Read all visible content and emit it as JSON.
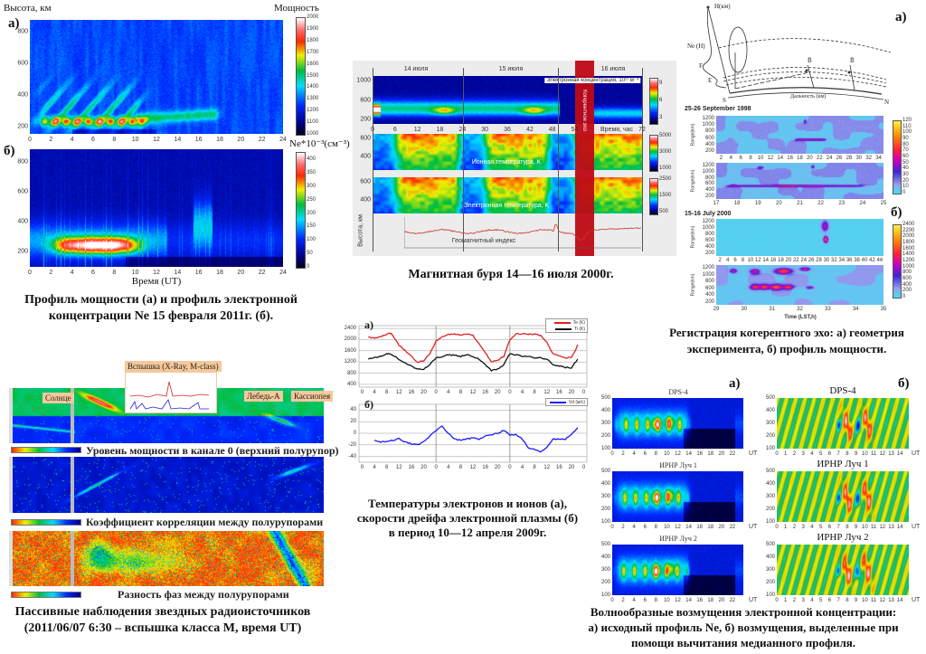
{
  "colors": {
    "jet_low": "#00008b",
    "jet_high": "#ff0000",
    "storm_band": "#b01010",
    "te_line": "#e02020",
    "ti_line": "#111111",
    "vd_line": "#1a1aff"
  },
  "fig1": {
    "ylabel": "Высота, км",
    "label_a": "а)",
    "label_b": "б)",
    "cbar_a_title": "Мощность",
    "cbar_b_title": "Ne*10⁻³(см⁻³)",
    "xlabel": "Время (UT)",
    "caption": [
      "Профиль мощности (а) и профиль электронной",
      "концентрации Ne 15 февраля 2011г. (б)."
    ]
  },
  "fig2": {
    "days": [
      "14 июля",
      "15 июля",
      "16 июля"
    ],
    "ne_label": "Электронная концентрация, 10¹¹ м⁻³",
    "coherent_label": "Когерентное эхо",
    "ti_label": "Ионная температура, K",
    "te_label": "Электронная температура, K",
    "ylabel": "Высота, км",
    "geomag_label": "Геомагнитный индекс",
    "time_label": "Время, час",
    "caption": "Магнитная буря 14—16 июля 2000г."
  },
  "fig3": {
    "label_a": "а)",
    "label_b": "б)",
    "diagram": {
      "h_axis": "H(км)",
      "ne_h": "Ne (H)",
      "f_layer": "F",
      "e_layer": "E",
      "south": "S",
      "north": "N",
      "b_field": "B̄",
      "range": "Дальность (км)"
    },
    "title_1998": "25-26 September 1998",
    "title_2000": "15-16 July 2000",
    "ylabel": "Range(km)",
    "xlabel": "Time (LST,h)",
    "caption": [
      "Регистрация когерентного эхо: а) геометрия",
      "эксперимента, б) профиль мощности."
    ]
  },
  "fig4": {
    "label_a": "а)",
    "label_b": "б)",
    "legend_te": "Te (K)",
    "legend_ti": "Ti (K)",
    "legend_vd": "Vd (м/с)",
    "caption": [
      "Температуры электронов и ионов (а),",
      "скорости дрейфа электронной плазмы (б)",
      "в период 10—12 апреля 2009г."
    ]
  },
  "fig5": {
    "flare_label": "Вспышка (X-Ray, M-class)",
    "sun_label": "Солнце",
    "cygnus_label": "Лебедь-А",
    "cassiopeia_label": "Кассиопея",
    "strip1_caption": "Уровень мощности в канале 0 (верхний полурупор)",
    "strip2_caption": "Коэффициент корреляции между полурупорами",
    "strip3_caption": "Разность фаз между полурупорами",
    "caption": [
      "Пассивные наблюдения звездных радиоисточников",
      "(2011/06/07 6:30 – вспышка класса M, время UT)"
    ]
  },
  "fig6": {
    "label_a": "а)",
    "label_b": "б)",
    "titles": [
      "DPS-4",
      "ИРНР Луч 1",
      "ИРНР Луч 2"
    ],
    "x_unit": "UT",
    "caption": [
      "Волнообразные возмущения электронной концентрации:",
      "а) исходный профиль Ne, б) возмущения, выделенные при",
      "помощи вычитания медианного профиля."
    ]
  },
  "chart_data": [
    {
      "type": "heatmap",
      "panel": "fig1-a",
      "title": "Мощность",
      "ylabel": "Высота, км",
      "xlim": [
        0,
        24
      ],
      "xticks": [
        0,
        2,
        4,
        6,
        8,
        10,
        12,
        14,
        16,
        18,
        20,
        22,
        24
      ],
      "ylim": [
        154,
        874
      ],
      "yticks": [
        200,
        400,
        600,
        800
      ],
      "colorbar_ticks": [
        2000,
        1900,
        1800,
        1700,
        1600,
        1500,
        1400,
        1300,
        1200,
        1100,
        1000
      ],
      "clim": [
        1000,
        2000
      ]
    },
    {
      "type": "heatmap",
      "panel": "fig1-b",
      "title": "Ne*10⁻³(см⁻³)",
      "xlabel": "Время (UT)",
      "xlim": [
        0,
        24
      ],
      "xticks": [
        0,
        2,
        4,
        6,
        8,
        10,
        12,
        14,
        16,
        18,
        20,
        22,
        24
      ],
      "ylim": [
        100,
        885
      ],
      "yticks": [
        200,
        400,
        600,
        800
      ],
      "colorbar_ticks": [
        400,
        350,
        300,
        250,
        200,
        150,
        100,
        50,
        0
      ],
      "clim": [
        0,
        440
      ]
    },
    {
      "type": "heatmap",
      "panel": "fig2-ne",
      "xlim": [
        0,
        72
      ],
      "xticks": [
        0,
        6,
        12,
        18,
        24,
        30,
        36,
        42,
        48,
        54,
        72
      ],
      "ylim": [
        100,
        1100
      ],
      "yticks": [
        1000,
        600,
        200
      ],
      "colorbar_ticks": [
        9,
        6,
        3
      ]
    },
    {
      "type": "heatmap",
      "panel": "fig2-ti",
      "ylim": [
        250,
        650
      ],
      "yticks": [
        600,
        400
      ],
      "colorbar_ticks": [
        5000,
        3000,
        1000
      ]
    },
    {
      "type": "heatmap",
      "panel": "fig2-te",
      "ylim": [
        250,
        650
      ],
      "yticks": [
        600,
        400
      ],
      "colorbar_ticks": [
        2500,
        1500,
        500
      ]
    },
    {
      "type": "line",
      "panel": "fig4-a",
      "xlim": [
        -1,
        73
      ],
      "ylim": [
        300,
        2500
      ],
      "xticks": [
        0,
        4,
        8,
        12,
        16,
        20,
        24,
        28,
        32,
        36,
        40,
        44,
        48,
        52,
        56,
        60,
        64,
        68,
        72
      ],
      "xtick_labels": [
        "0",
        "4",
        "8",
        "12",
        "16",
        "20",
        "0",
        "4",
        "8",
        "12",
        "16",
        "20",
        "0",
        "4",
        "8",
        "12",
        "16",
        "20",
        "0"
      ],
      "yticks": [
        400,
        800,
        1200,
        1600,
        2000,
        2400
      ],
      "grid": true,
      "legend": "top-right",
      "x": [
        2,
        4,
        6,
        8,
        9,
        10,
        12,
        14,
        16,
        18,
        20,
        22,
        24,
        26,
        28,
        30,
        32,
        34,
        36,
        38,
        40,
        42,
        44,
        46,
        48,
        50,
        52,
        54,
        56,
        58,
        60,
        62,
        64,
        66,
        68,
        70
      ],
      "series": [
        {
          "name": "Te (K)",
          "values": [
            2100,
            2050,
            2100,
            2200,
            2250,
            2150,
            1800,
            1600,
            1400,
            1200,
            1250,
            1500,
            1950,
            2100,
            2200,
            2200,
            2150,
            2200,
            2150,
            1850,
            1550,
            1200,
            1250,
            1400,
            2000,
            2200,
            2200,
            2200,
            2200,
            2150,
            1900,
            1500,
            1400,
            1350,
            1350,
            1800
          ]
        },
        {
          "name": "Ti (K)",
          "values": [
            1300,
            1350,
            1400,
            1500,
            1480,
            1450,
            1300,
            1150,
            1050,
            950,
            950,
            1100,
            1350,
            1400,
            1450,
            1450,
            1400,
            1450,
            1400,
            1300,
            1100,
            900,
            950,
            1100,
            1500,
            1450,
            1400,
            1400,
            1350,
            1350,
            1300,
            1100,
            1050,
            1000,
            1000,
            1300
          ]
        }
      ]
    },
    {
      "type": "line",
      "panel": "fig4-b",
      "xlim": [
        -1,
        73
      ],
      "ylim": [
        -50,
        50
      ],
      "xticks": [
        0,
        4,
        8,
        12,
        16,
        20,
        24,
        28,
        32,
        36,
        40,
        44,
        48,
        52,
        56,
        60,
        64,
        68,
        72
      ],
      "xtick_labels": [
        "0",
        "4",
        "8",
        "12",
        "16",
        "20",
        "0",
        "4",
        "8",
        "12",
        "16",
        "20",
        "0",
        "4",
        "8",
        "12",
        "16",
        "20",
        "0"
      ],
      "yticks": [
        -40,
        -20,
        0,
        20,
        40
      ],
      "grid": true,
      "legend": "top-right",
      "x": [
        4,
        6,
        8,
        10,
        12,
        14,
        16,
        18,
        20,
        22,
        24,
        26,
        28,
        30,
        32,
        34,
        36,
        38,
        40,
        42,
        44,
        46,
        48,
        50,
        52,
        54,
        56,
        58,
        60,
        62,
        64,
        66,
        68,
        70
      ],
      "series": [
        {
          "name": "Vd (м/с)",
          "values": [
            -12,
            -15,
            -14,
            -12,
            -9,
            -15,
            -18,
            -20,
            -15,
            -5,
            5,
            12,
            0,
            -10,
            -12,
            -10,
            -8,
            -10,
            -5,
            -2,
            0,
            5,
            -3,
            -2,
            -10,
            -25,
            -28,
            -32,
            -25,
            -10,
            -10,
            -10,
            -2,
            10
          ]
        }
      ]
    },
    {
      "type": "heatmap",
      "panel": "fig3-1998-full",
      "ylabel": "Range(km)",
      "xticks": [
        2,
        4,
        6,
        8,
        10,
        12,
        14,
        16,
        18,
        20,
        22,
        24,
        26,
        28,
        30,
        32,
        34
      ],
      "yticks": [
        1200,
        1000,
        800,
        600,
        400,
        200
      ],
      "colorbar_ticks": [
        120,
        110,
        100,
        90,
        80,
        70,
        60,
        50,
        40,
        30,
        20,
        10,
        0
      ]
    },
    {
      "type": "heatmap",
      "panel": "fig3-1998-zoom",
      "ylabel": "Range(km)",
      "xticks": [
        17,
        18,
        19,
        20,
        21,
        22,
        23,
        24,
        25
      ],
      "yticks": [
        1200,
        1000,
        800,
        600,
        400,
        200
      ]
    },
    {
      "type": "heatmap",
      "panel": "fig3-2000-full",
      "ylabel": "Range(km)",
      "xticks": [
        2,
        4,
        6,
        8,
        10,
        12,
        14,
        16,
        18,
        20,
        22,
        24,
        26,
        28,
        30,
        32,
        34,
        36,
        38,
        40,
        42,
        44
      ],
      "yticks": [
        1200,
        1000,
        800,
        600,
        400,
        200
      ],
      "colorbar_ticks": [
        2400,
        2200,
        2000,
        1800,
        1600,
        1400,
        1200,
        1000,
        800,
        600,
        400,
        200,
        0
      ]
    },
    {
      "type": "heatmap",
      "panel": "fig3-2000-zoom",
      "ylabel": "Range(km)",
      "xlabel": "Time (LST,h)",
      "xticks": [
        29,
        30,
        31,
        32,
        33,
        34,
        35
      ],
      "yticks": [
        1200,
        1000,
        800,
        600,
        400,
        200
      ]
    },
    {
      "type": "heatmap",
      "panel": "fig6-a",
      "xlim": [
        0,
        24
      ],
      "xticks": [
        0,
        2,
        4,
        6,
        8,
        10,
        12,
        14,
        16,
        18,
        20,
        22
      ],
      "ylim": [
        100,
        500
      ],
      "yticks": [
        500,
        400,
        300,
        200,
        100
      ],
      "xlabel": "UT"
    },
    {
      "type": "heatmap",
      "panel": "fig6-b",
      "xlim": [
        0,
        15
      ],
      "xticks": [
        0,
        1,
        2,
        3,
        4,
        5,
        6,
        7,
        8,
        9,
        10,
        11,
        12,
        13,
        14
      ],
      "ylim": [
        100,
        500
      ],
      "yticks": [
        500,
        400,
        300,
        200,
        100
      ],
      "xlabel": "UT"
    }
  ]
}
